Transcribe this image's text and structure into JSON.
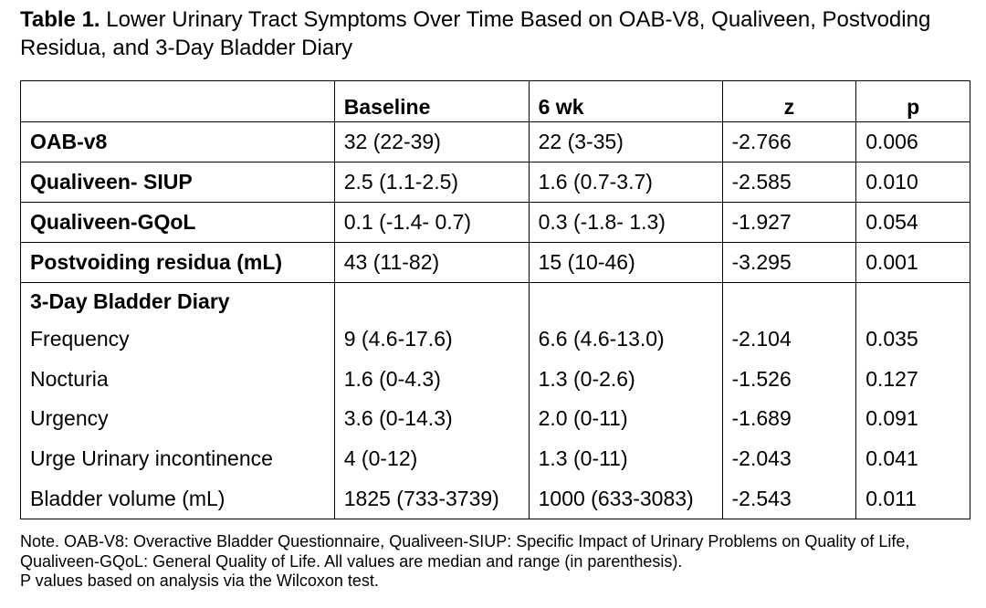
{
  "caption": {
    "lead": "Table 1.",
    "text": " Lower Urinary Tract Symptoms Over Time Based on OAB-V8, Qualiveen, Postvoding Residua, and 3-Day Bladder Diary"
  },
  "table": {
    "headers": [
      "",
      "Baseline",
      "6 wk",
      "z",
      "p"
    ],
    "rows": [
      [
        "OAB-v8",
        "32  (22-39)",
        "22 (3-35)",
        "-2.766",
        "0.006"
      ],
      [
        "Qualiveen- SIUP",
        "2.5 (1.1-2.5)",
        "1.6 (0.7-3.7)",
        "-2.585",
        "0.010"
      ],
      [
        "Qualiveen-GQoL",
        "0.1 (-1.4- 0.7)",
        "0.3 (-1.8- 1.3)",
        "-1.927",
        "0.054"
      ],
      [
        "Postvoiding residua (mL)",
        "43  (11-82)",
        "15 (10-46)",
        "-3.295",
        "0.001"
      ]
    ],
    "diary_header": "3-Day Bladder Diary",
    "diary_rows": [
      [
        "Frequency",
        "9 (4.6-17.6)",
        "6.6 (4.6-13.0)",
        "-2.104",
        "0.035"
      ],
      [
        "Nocturia",
        "1.6 (0-4.3)",
        "1.3 (0-2.6)",
        "-1.526",
        "0.127"
      ],
      [
        "Urgency",
        "3.6 (0-14.3)",
        "2.0 (0-11)",
        "-1.689",
        "0.091"
      ],
      [
        "Urge Urinary incontinence",
        "4 (0-12)",
        "1.3 (0-11)",
        "-2.043",
        "0.041"
      ],
      [
        "Bladder volume (mL)",
        "1825 (733-3739)",
        "1000 (633-3083)",
        "-2.543",
        "0.011"
      ]
    ]
  },
  "note": {
    "line1": "Note. OAB-V8: Overactive Bladder Questionnaire, Qualiveen-SIUP: Specific Impact of Urinary Problems on Quality of Life, Qualiveen-GQoL: General Quality of Life. All values are median and range (in parenthesis).",
    "line2": "P values based on analysis via the Wilcoxon test."
  }
}
